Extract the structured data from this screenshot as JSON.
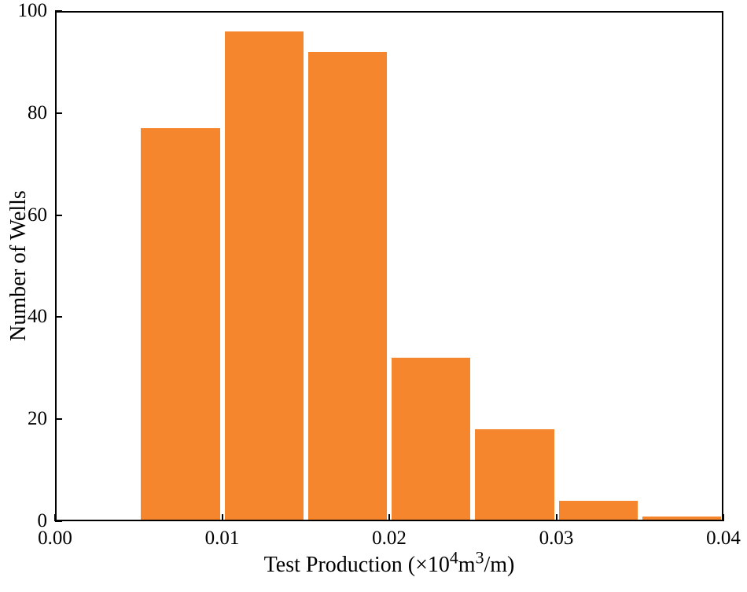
{
  "chart_data": {
    "type": "bar",
    "title": "",
    "ylabel": "Number of Wells",
    "xlabel_parts": {
      "prefix": "Test Production  (×10",
      "sup1": "4",
      "mid": "m",
      "sup2": "3",
      "suffix": "/m)"
    },
    "xlim": [
      0,
      0.04
    ],
    "ylim": [
      0,
      100
    ],
    "x_ticks": [
      "0.00",
      "0.01",
      "0.02",
      "0.03",
      "0.04"
    ],
    "y_ticks": [
      "0",
      "20",
      "40",
      "60",
      "80",
      "100"
    ],
    "bin_width": 0.005,
    "bar_color": "#F5862D",
    "axis_color": "#000000",
    "grid": "off",
    "legend": "none",
    "bars": [
      {
        "x_start": 0.005,
        "x_end": 0.01,
        "value": 77
      },
      {
        "x_start": 0.01,
        "x_end": 0.015,
        "value": 96
      },
      {
        "x_start": 0.015,
        "x_end": 0.02,
        "value": 92
      },
      {
        "x_start": 0.02,
        "x_end": 0.025,
        "value": 32
      },
      {
        "x_start": 0.025,
        "x_end": 0.03,
        "value": 18
      },
      {
        "x_start": 0.03,
        "x_end": 0.035,
        "value": 4
      },
      {
        "x_start": 0.035,
        "x_end": 0.04,
        "value": 1
      }
    ]
  }
}
